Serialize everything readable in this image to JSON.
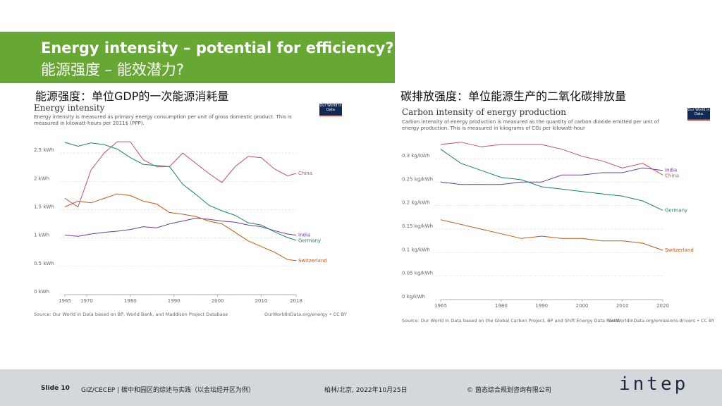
{
  "header": {
    "title": "Energy intensity – potential for efficiency?",
    "subtitle": "能源强度 – 能效潜力?"
  },
  "panels": [
    "能源强度：单位GDP的一次能源消耗量",
    "碳排放强度：单位能源生产的二氧化碳排放量"
  ],
  "chart_data": [
    {
      "type": "line",
      "title": "Energy intensity",
      "subtitle": "Energy intensity is measured as primary energy consumption per unit of gross domestic product. This is measured in kilowatt-hours per 2011$ (PPP).",
      "logo": "Our World in Data",
      "source": "Source: Our World in Data based on BP, World Bank, and Maddison Project Database",
      "url": "OurWorldInData.org/energy • CC BY",
      "x": [
        1965,
        1968,
        1971,
        1974,
        1977,
        1980,
        1983,
        1986,
        1989,
        1992,
        1995,
        1998,
        2001,
        2004,
        2007,
        2010,
        2013,
        2016,
        2018
      ],
      "xlim": [
        1965,
        2018
      ],
      "xticks": [
        1965,
        1970,
        1980,
        1990,
        2000,
        2010,
        2018
      ],
      "ylim": [
        0,
        2.9
      ],
      "yticks": [
        {
          "value": 0,
          "label": "0 kWh"
        },
        {
          "value": 0.5,
          "label": "0.5 kWh"
        },
        {
          "value": 1,
          "label": "1 kWh"
        },
        {
          "value": 1.5,
          "label": "1.5 kWh"
        },
        {
          "value": 2,
          "label": "2 kWh"
        },
        {
          "value": 2.5,
          "label": "2.5 kWh"
        }
      ],
      "grid": true,
      "series": [
        {
          "name": "China",
          "color": "#c15065",
          "values": [
            1.7,
            1.55,
            2.2,
            2.5,
            2.7,
            2.7,
            2.38,
            2.26,
            2.26,
            2.5,
            2.32,
            2.14,
            1.98,
            2.26,
            2.44,
            2.42,
            2.22,
            2.1,
            2.14
          ]
        },
        {
          "name": "India",
          "color": "#6d3e91",
          "values": [
            1.05,
            1.03,
            1.07,
            1.1,
            1.12,
            1.15,
            1.2,
            1.18,
            1.25,
            1.3,
            1.35,
            1.33,
            1.3,
            1.28,
            1.23,
            1.2,
            1.13,
            1.07,
            1.05
          ]
        },
        {
          "name": "Germany",
          "color": "#18806a",
          "values": [
            2.69,
            2.62,
            2.68,
            2.65,
            2.57,
            2.42,
            2.3,
            2.28,
            2.26,
            1.95,
            1.77,
            1.58,
            1.48,
            1.4,
            1.27,
            1.23,
            1.11,
            1.01,
            0.96
          ]
        },
        {
          "name": "Switzerland",
          "color": "#c05917",
          "values": [
            1.55,
            1.65,
            1.62,
            1.7,
            1.78,
            1.75,
            1.65,
            1.6,
            1.45,
            1.42,
            1.38,
            1.3,
            1.25,
            1.1,
            0.95,
            0.85,
            0.75,
            0.62,
            0.6
          ]
        }
      ]
    },
    {
      "type": "line",
      "title": "Carbon intensity of energy production",
      "subtitle": "Carbon intensity of energy production is measured as the quantity of carbon dioxide emitted per unit of energy production. This is measured in kilograms of CO₂ per kilowatt-hour",
      "logo": "Our World in Data",
      "source": "Source: Our World in Data based on the Global Carbon Project, BP and Shift Energy Data Portal",
      "url": "OurWorldInData.org/emissions-drivers • CC BY",
      "x": [
        1965,
        1970,
        1975,
        1980,
        1985,
        1990,
        1995,
        2000,
        2005,
        2010,
        2015,
        2020
      ],
      "xlim": [
        1965,
        2020
      ],
      "xticks": [
        1965,
        1980,
        1990,
        2000,
        2010,
        2020
      ],
      "ylim": [
        0,
        0.345
      ],
      "yticks": [
        {
          "value": 0,
          "label": "0 kg/kWh"
        },
        {
          "value": 0.05,
          "label": "0.05 kg/kWh"
        },
        {
          "value": 0.1,
          "label": "0.1 kg/kWh"
        },
        {
          "value": 0.15,
          "label": "0.15 kg/kWh"
        },
        {
          "value": 0.2,
          "label": "0.2 kg/kWh"
        },
        {
          "value": 0.25,
          "label": "0.25 kg/kWh"
        },
        {
          "value": 0.3,
          "label": "0.3 kg/kWh"
        }
      ],
      "grid": true,
      "series": [
        {
          "name": "India",
          "color": "#6d3e91",
          "values": [
            0.25,
            0.245,
            0.245,
            0.245,
            0.25,
            0.25,
            0.265,
            0.265,
            0.27,
            0.27,
            0.28,
            0.275
          ]
        },
        {
          "name": "China",
          "color": "#c15065",
          "values": [
            0.33,
            0.335,
            0.325,
            0.33,
            0.33,
            0.33,
            0.32,
            0.305,
            0.295,
            0.28,
            0.29,
            0.265
          ]
        },
        {
          "name": "Germany",
          "color": "#18806a",
          "values": [
            0.32,
            0.29,
            0.275,
            0.26,
            0.255,
            0.24,
            0.235,
            0.23,
            0.225,
            0.22,
            0.21,
            0.19
          ]
        },
        {
          "name": "Switzerland",
          "color": "#c05917",
          "values": [
            0.17,
            0.16,
            0.15,
            0.14,
            0.13,
            0.135,
            0.13,
            0.13,
            0.125,
            0.125,
            0.12,
            0.105
          ]
        }
      ]
    }
  ],
  "footer": {
    "slide": "Slide 10",
    "project": "GIZ/CECEP | 碳中和园区的综述与实践（以金坛经开区为例）",
    "place_date": "柏林/北京, 2022年10月25日",
    "copyright": "© 茵态综合规划咨询有限公司",
    "brand": "intep"
  }
}
